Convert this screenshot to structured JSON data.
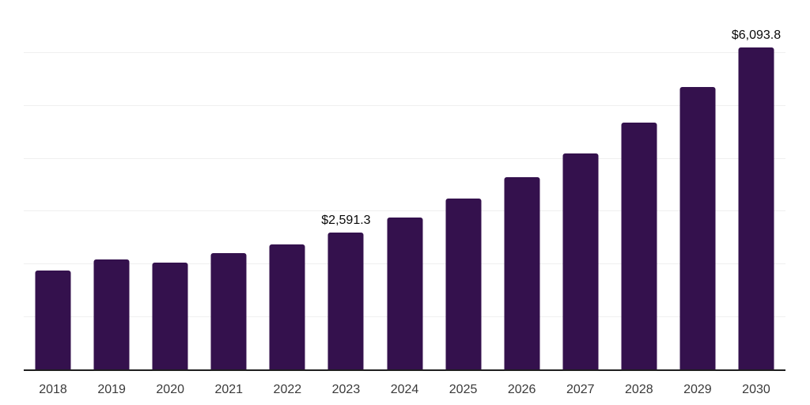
{
  "chart_data": {
    "type": "bar",
    "title": "",
    "xlabel": "",
    "ylabel": "",
    "categories": [
      "2018",
      "2019",
      "2020",
      "2021",
      "2022",
      "2023",
      "2024",
      "2025",
      "2026",
      "2027",
      "2028",
      "2029",
      "2030"
    ],
    "values": [
      1870,
      2085,
      2025,
      2200,
      2360,
      2591.3,
      2880,
      3225,
      3630,
      4090,
      4660,
      5335,
      6093.8
    ],
    "data_labels": {
      "2023": "$2,591.3",
      "2030": "$6,093.8"
    },
    "ylim": [
      0,
      7000
    ],
    "y_gridline_interval": 1000,
    "grid": "horizontal-only",
    "y_axis_tick_labels_visible": false,
    "legend_position": "none"
  },
  "colors": {
    "bar": "#34114d",
    "axis_line": "#1f1f1f",
    "gridline": "#f0f0f0",
    "tick_label": "#3a3a3a",
    "data_label": "#0a0a0a",
    "background": "#ffffff"
  }
}
